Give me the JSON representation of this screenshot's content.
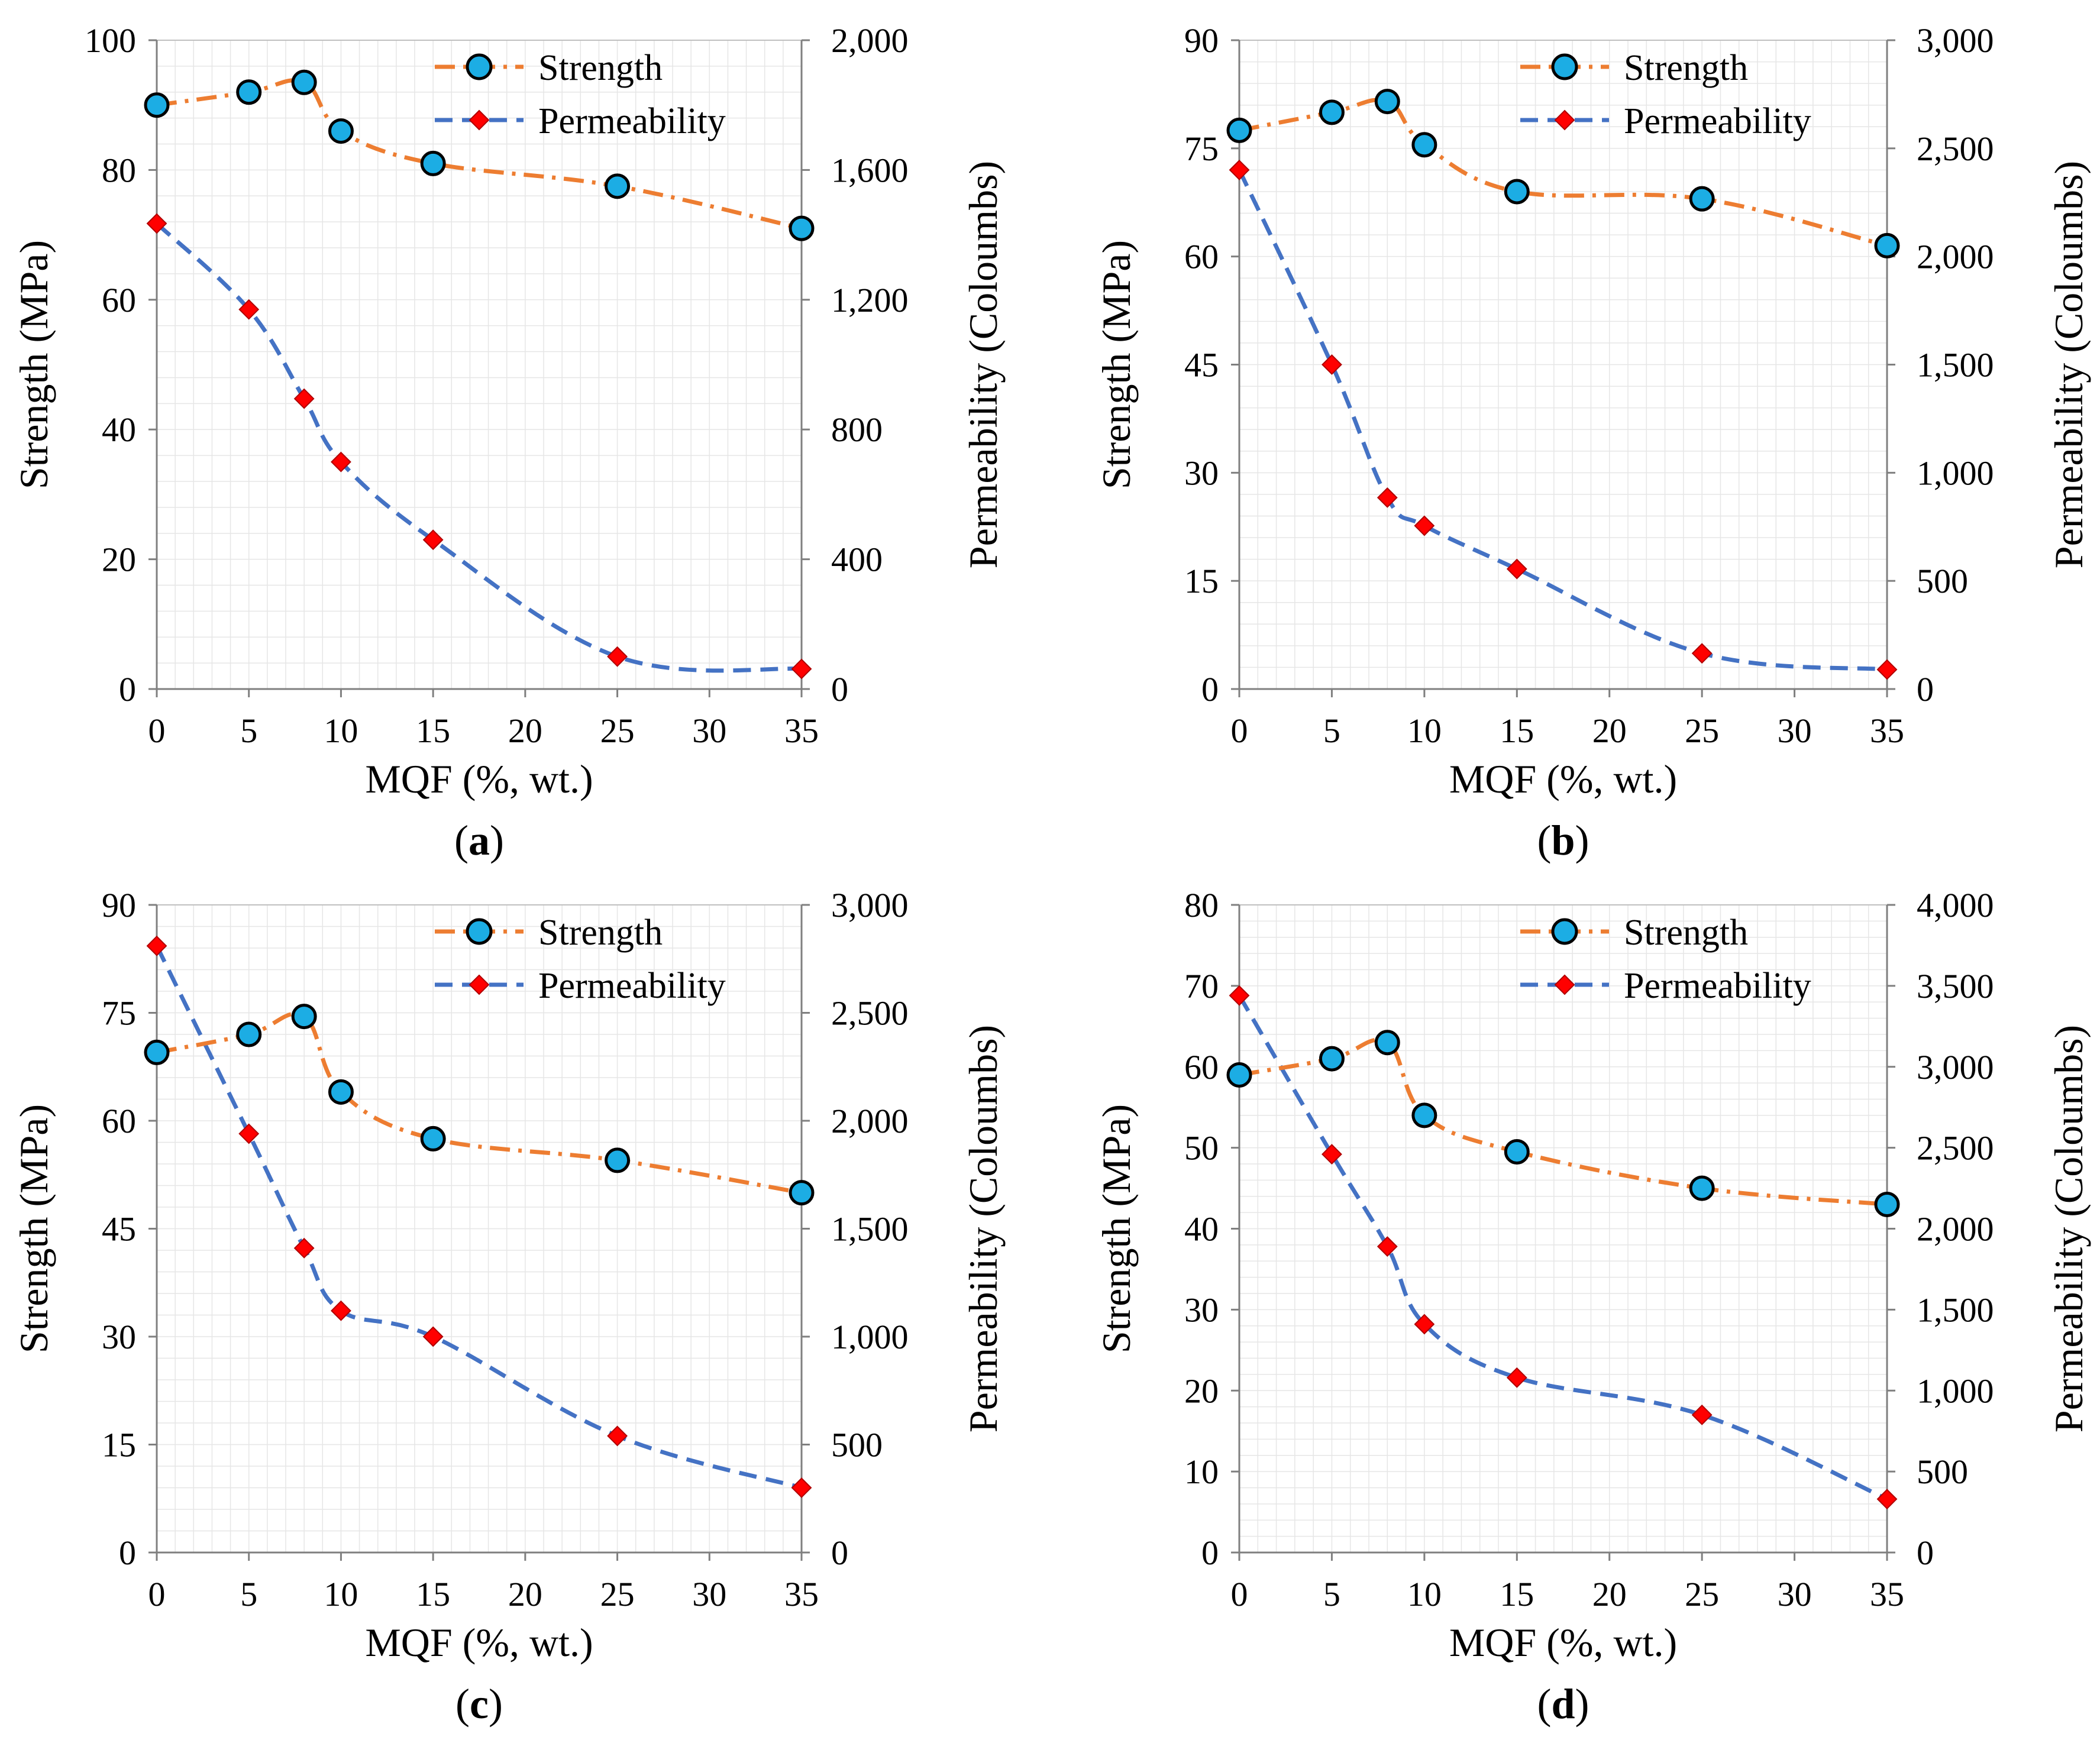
{
  "colors": {
    "strength_line": "#ED7D31",
    "strength_marker": "#1CADE4",
    "permeability_line": "#4472C4",
    "permeability_marker": "#FF0000",
    "grid": "#E6E6E6"
  },
  "chart_data": [
    {
      "type": "line",
      "panel": "a",
      "caption": {
        "open": "(",
        "letter": "a",
        "close": ")"
      },
      "xlabel": "MQF (%, wt.)",
      "ylabel_left": "Strength (MPa)",
      "ylabel_right": "Permeability (Coloumbs)",
      "xlim": [
        0,
        35
      ],
      "xticks": [
        0,
        5,
        10,
        15,
        20,
        25,
        30,
        35
      ],
      "ylim_left": [
        0,
        100
      ],
      "yticks_left": [
        0,
        20,
        40,
        60,
        80,
        100
      ],
      "ylim_right": [
        0,
        2000
      ],
      "yticks_right": [
        0,
        400,
        800,
        1200,
        1600,
        2000
      ],
      "yticks_right_labels": [
        "0",
        "400",
        "800",
        "1,200",
        "1,600",
        "2,000"
      ],
      "legend": [
        "Strength",
        "Permeability"
      ],
      "series": [
        {
          "name": "Strength",
          "axis": "left",
          "x": [
            0,
            5,
            8,
            10,
            15,
            25,
            35
          ],
          "values": [
            90,
            92,
            93.5,
            86,
            81,
            77.5,
            71
          ]
        },
        {
          "name": "Permeability",
          "axis": "right",
          "x": [
            0,
            5,
            8,
            10,
            15,
            25,
            35
          ],
          "values": [
            1435,
            1170,
            895,
            700,
            460,
            100,
            62
          ]
        }
      ]
    },
    {
      "type": "line",
      "panel": "b",
      "caption": {
        "open": "(",
        "letter": "b",
        "close": ")"
      },
      "xlabel": "MQF (%, wt.)",
      "ylabel_left": "Strength (MPa)",
      "ylabel_right": "Permeability (Coloumbs)",
      "xlim": [
        0,
        35
      ],
      "xticks": [
        0,
        5,
        10,
        15,
        20,
        25,
        30,
        35
      ],
      "ylim_left": [
        0,
        90
      ],
      "yticks_left": [
        0,
        15,
        30,
        45,
        60,
        75,
        90
      ],
      "ylim_right": [
        0,
        3000
      ],
      "yticks_right": [
        0,
        500,
        1000,
        1500,
        2000,
        2500,
        3000
      ],
      "yticks_right_labels": [
        "0",
        "500",
        "1,000",
        "1,500",
        "2,000",
        "2,500",
        "3,000"
      ],
      "legend": [
        "Strength",
        "Permeability"
      ],
      "series": [
        {
          "name": "Strength",
          "axis": "left",
          "x": [
            0,
            5,
            8,
            10,
            15,
            25,
            35
          ],
          "values": [
            77.5,
            80,
            81.5,
            75.5,
            69,
            68,
            61.5
          ]
        },
        {
          "name": "Permeability",
          "axis": "right",
          "x": [
            0,
            5,
            8,
            10,
            15,
            25,
            35
          ],
          "values": [
            2400,
            1500,
            885,
            755,
            555,
            165,
            90
          ]
        }
      ]
    },
    {
      "type": "line",
      "panel": "c",
      "caption": {
        "open": "(",
        "letter": "c",
        "close": ")"
      },
      "xlabel": "MQF (%, wt.)",
      "ylabel_left": "Strength (MPa)",
      "ylabel_right": "Permeability (Coloumbs)",
      "xlim": [
        0,
        35
      ],
      "xticks": [
        0,
        5,
        10,
        15,
        20,
        25,
        30,
        35
      ],
      "ylim_left": [
        0,
        90
      ],
      "yticks_left": [
        0,
        15,
        30,
        45,
        60,
        75,
        90
      ],
      "ylim_right": [
        0,
        3000
      ],
      "yticks_right": [
        0,
        500,
        1000,
        1500,
        2000,
        2500,
        3000
      ],
      "yticks_right_labels": [
        "0",
        "500",
        "1,000",
        "1,500",
        "2,000",
        "2,500",
        "3,000"
      ],
      "legend": [
        "Strength",
        "Permeability"
      ],
      "series": [
        {
          "name": "Strength",
          "axis": "left",
          "x": [
            0,
            5,
            8,
            10,
            15,
            25,
            35
          ],
          "values": [
            69.5,
            72,
            74.5,
            64,
            57.5,
            54.5,
            50
          ]
        },
        {
          "name": "Permeability",
          "axis": "right",
          "x": [
            0,
            5,
            8,
            10,
            15,
            25,
            35
          ],
          "values": [
            2810,
            1940,
            1410,
            1120,
            1000,
            540,
            300
          ]
        }
      ]
    },
    {
      "type": "line",
      "panel": "d",
      "caption": {
        "open": "(",
        "letter": "d",
        "close": ")"
      },
      "xlabel": "MQF (%, wt.)",
      "ylabel_left": "Strength (MPa)",
      "ylabel_right": "Permeability (Coloumbs)",
      "xlim": [
        0,
        35
      ],
      "xticks": [
        0,
        5,
        10,
        15,
        20,
        25,
        30,
        35
      ],
      "ylim_left": [
        0,
        80
      ],
      "yticks_left": [
        0,
        10,
        20,
        30,
        40,
        50,
        60,
        70,
        80
      ],
      "ylim_right": [
        0,
        4000
      ],
      "yticks_right": [
        0,
        500,
        1000,
        1500,
        2000,
        2500,
        3000,
        3500,
        4000
      ],
      "yticks_right_labels": [
        "0",
        "500",
        "1,000",
        "1,500",
        "2,000",
        "2,500",
        "3,000",
        "3,500",
        "4,000"
      ],
      "legend": [
        "Strength",
        "Permeability"
      ],
      "series": [
        {
          "name": "Strength",
          "axis": "left",
          "x": [
            0,
            5,
            8,
            10,
            15,
            25,
            35
          ],
          "values": [
            59,
            61,
            63,
            54,
            49.5,
            45,
            43
          ]
        },
        {
          "name": "Permeability",
          "axis": "right",
          "x": [
            0,
            5,
            8,
            10,
            15,
            25,
            35
          ],
          "values": [
            3440,
            2460,
            1890,
            1410,
            1080,
            850,
            330
          ]
        }
      ]
    }
  ]
}
